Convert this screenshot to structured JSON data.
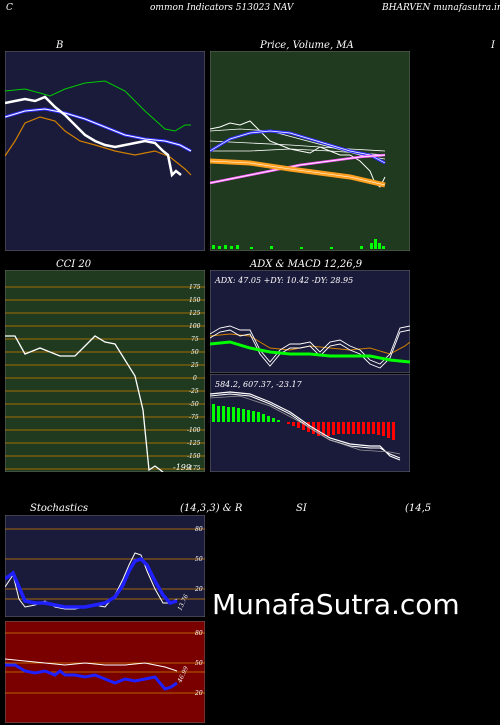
{
  "header": {
    "left": "C",
    "mid": "ommon  Indicators 513023 NAV",
    "right": "BHARVEN  munafasutra.in"
  },
  "titles": {
    "bb": "B",
    "price": "Price,  Volume,  MA",
    "price_overlap": "MA",
    "right_edge": "I",
    "cci": "CCI 20",
    "adx": "ADX  & MACD 12,26,9",
    "stoch": "Stochastics",
    "stoch_params": "(14,3,3) & R",
    "si": "SI",
    "si_params": "(14,5"
  },
  "adx_values": "ADX: 47.05  +DY: 10.42  -DY: 28.95",
  "macd_values": "584.2,  607.37,  -23.17",
  "cci_ticks": [
    "175",
    "150",
    "125",
    "100",
    "75",
    "50",
    "25",
    "0",
    "-25",
    "-50",
    "-75",
    "-100",
    "-125",
    "-150",
    "-175"
  ],
  "cci_last": "-199",
  "stoch_ticks": [
    "80",
    "50",
    "20"
  ],
  "stoch_last": "13.76",
  "rsi_ticks": [
    "80",
    "50",
    "20"
  ],
  "rsi_last": "46.99",
  "watermark": "MunafaSutra.com",
  "colors": {
    "navy": "#1a1a3a",
    "dark_green": "#1f3a1f",
    "rsi_red": "#7a0000",
    "orange": "#d08000",
    "blue": "#2020ff"
  }
}
